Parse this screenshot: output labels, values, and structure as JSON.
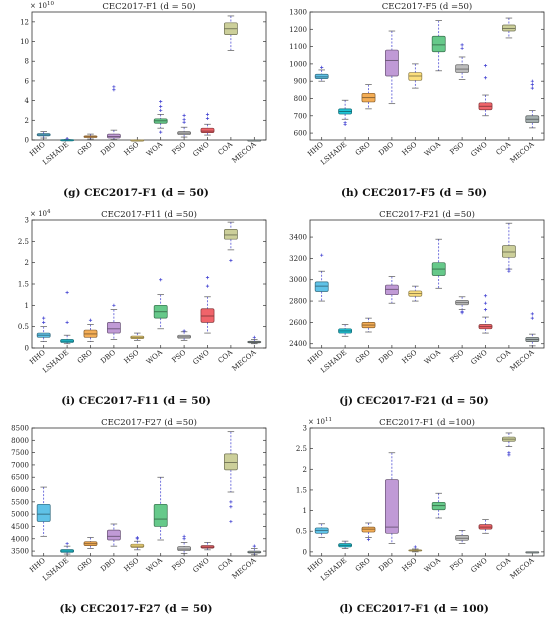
{
  "chart_data": [
    {
      "type": "box",
      "title": "CEC2017-F1 (d = 50)",
      "caption": "(g) CEC2017-F1 (d = 50)",
      "exponent": "× 10^10",
      "ylim": [
        0,
        13
      ],
      "yticks": [
        0,
        2,
        4,
        6,
        8,
        10,
        12
      ],
      "categories": [
        "HHO",
        "LSHADE",
        "GRO",
        "DBO",
        "HSO",
        "WOA",
        "PSO",
        "GWO",
        "COA",
        "MECOA"
      ],
      "boxes": [
        {
          "min": 0.2,
          "q1": 0.42,
          "median": 0.52,
          "q3": 0.65,
          "max": 0.85,
          "outliers": []
        },
        {
          "min": 0.0,
          "q1": 0.01,
          "median": 0.02,
          "q3": 0.03,
          "max": 0.05,
          "outliers": [
            0.12
          ]
        },
        {
          "min": 0.1,
          "q1": 0.25,
          "median": 0.33,
          "q3": 0.42,
          "max": 0.6,
          "outliers": []
        },
        {
          "min": 0.05,
          "q1": 0.2,
          "median": 0.35,
          "q3": 0.6,
          "max": 1.0,
          "outliers": [
            5.1,
            5.4
          ]
        },
        {
          "min": 0.0,
          "q1": 0.0,
          "median": 0.0,
          "q3": 0.01,
          "max": 0.02,
          "outliers": []
        },
        {
          "min": 1.2,
          "q1": 1.7,
          "median": 1.95,
          "q3": 2.15,
          "max": 2.6,
          "outliers": [
            3.0,
            3.4,
            3.9,
            0.8
          ]
        },
        {
          "min": 0.3,
          "q1": 0.55,
          "median": 0.7,
          "q3": 0.85,
          "max": 1.3,
          "outliers": [
            1.8,
            2.1,
            2.5
          ]
        },
        {
          "min": 0.5,
          "q1": 0.75,
          "median": 0.9,
          "q3": 1.2,
          "max": 1.6,
          "outliers": [
            2.2,
            2.6
          ]
        },
        {
          "min": 9.1,
          "q1": 10.7,
          "median": 11.3,
          "q3": 11.9,
          "max": 12.6,
          "outliers": []
        },
        {
          "min": 0.0,
          "q1": 0.0,
          "median": 0.0,
          "q3": 0.0,
          "max": 0.0,
          "outliers": []
        }
      ]
    },
    {
      "type": "box",
      "title": "CEC2017-F5 (d =50)",
      "caption": "(h) CEC2017-F5 (d = 50)",
      "exponent": "",
      "ylim": [
        560,
        1300
      ],
      "yticks": [
        600,
        700,
        800,
        900,
        1000,
        1100,
        1200,
        1300
      ],
      "categories": [
        "HHO",
        "LSHADE",
        "GRO",
        "DBO",
        "HSO",
        "WOA",
        "PSO",
        "GWO",
        "COA",
        "MECOA"
      ],
      "boxes": [
        {
          "min": 900,
          "q1": 915,
          "median": 925,
          "q3": 940,
          "max": 965,
          "outliers": [
            980
          ]
        },
        {
          "min": 680,
          "q1": 710,
          "median": 725,
          "q3": 740,
          "max": 790,
          "outliers": [
            660,
            650
          ]
        },
        {
          "min": 740,
          "q1": 780,
          "median": 805,
          "q3": 830,
          "max": 880,
          "outliers": []
        },
        {
          "min": 770,
          "q1": 930,
          "median": 1020,
          "q3": 1080,
          "max": 1190,
          "outliers": []
        },
        {
          "min": 860,
          "q1": 905,
          "median": 930,
          "q3": 950,
          "max": 1000,
          "outliers": []
        },
        {
          "min": 960,
          "q1": 1070,
          "median": 1110,
          "q3": 1160,
          "max": 1250,
          "outliers": []
        },
        {
          "min": 910,
          "q1": 950,
          "median": 970,
          "q3": 995,
          "max": 1040,
          "outliers": [
            1090,
            1110
          ]
        },
        {
          "min": 700,
          "q1": 735,
          "median": 755,
          "q3": 775,
          "max": 820,
          "outliers": [
            920,
            990
          ]
        },
        {
          "min": 1150,
          "q1": 1190,
          "median": 1205,
          "q3": 1225,
          "max": 1265,
          "outliers": []
        },
        {
          "min": 630,
          "q1": 660,
          "median": 680,
          "q3": 700,
          "max": 730,
          "outliers": [
            860,
            880,
            900
          ]
        }
      ]
    },
    {
      "type": "box",
      "title": "CEC2017-F11 (d =50)",
      "caption": "(i) CEC2017-F11 (d = 50)",
      "exponent": "× 10^4",
      "ylim": [
        0,
        3.0
      ],
      "yticks": [
        0,
        0.5,
        1,
        1.5,
        2,
        2.5,
        3
      ],
      "categories": [
        "HHO",
        "LSHADE",
        "GRO",
        "DBO",
        "HSO",
        "WOA",
        "PSO",
        "GWO",
        "COA",
        "MECOA"
      ],
      "boxes": [
        {
          "min": 0.15,
          "q1": 0.25,
          "median": 0.3,
          "q3": 0.35,
          "max": 0.5,
          "outliers": [
            0.6,
            0.7
          ]
        },
        {
          "min": 0.1,
          "q1": 0.13,
          "median": 0.16,
          "q3": 0.2,
          "max": 0.3,
          "outliers": [
            1.3,
            0.6
          ]
        },
        {
          "min": 0.15,
          "q1": 0.25,
          "median": 0.33,
          "q3": 0.42,
          "max": 0.55,
          "outliers": [
            0.65
          ]
        },
        {
          "min": 0.2,
          "q1": 0.35,
          "median": 0.45,
          "q3": 0.6,
          "max": 0.9,
          "outliers": [
            1.0
          ]
        },
        {
          "min": 0.18,
          "q1": 0.22,
          "median": 0.25,
          "q3": 0.28,
          "max": 0.35,
          "outliers": []
        },
        {
          "min": 0.45,
          "q1": 0.7,
          "median": 0.85,
          "q3": 1.0,
          "max": 1.25,
          "outliers": [
            1.6
          ]
        },
        {
          "min": 0.18,
          "q1": 0.23,
          "median": 0.26,
          "q3": 0.3,
          "max": 0.38,
          "outliers": [
            0.4
          ]
        },
        {
          "min": 0.35,
          "q1": 0.6,
          "median": 0.75,
          "q3": 0.92,
          "max": 1.2,
          "outliers": [
            1.45,
            1.65
          ]
        },
        {
          "min": 2.3,
          "q1": 2.55,
          "median": 2.65,
          "q3": 2.78,
          "max": 2.95,
          "outliers": [
            2.05
          ]
        },
        {
          "min": 0.1,
          "q1": 0.12,
          "median": 0.14,
          "q3": 0.16,
          "max": 0.2,
          "outliers": [
            0.25
          ]
        }
      ]
    },
    {
      "type": "box",
      "title": "CEC2017-F21 (d =50)",
      "caption": "(j) CEC2017-F21 (d = 50)",
      "exponent": "",
      "ylim": [
        2360,
        3560
      ],
      "yticks": [
        2400,
        2600,
        2800,
        3000,
        3200,
        3400
      ],
      "categories": [
        "HHO",
        "LSHADE",
        "GRO",
        "DBO",
        "HSO",
        "WOA",
        "PSO",
        "GWO",
        "COA",
        "MECOA"
      ],
      "boxes": [
        {
          "min": 2800,
          "q1": 2890,
          "median": 2940,
          "q3": 2980,
          "max": 3080,
          "outliers": [
            3230
          ]
        },
        {
          "min": 2470,
          "q1": 2500,
          "median": 2520,
          "q3": 2540,
          "max": 2580,
          "outliers": []
        },
        {
          "min": 2510,
          "q1": 2550,
          "median": 2575,
          "q3": 2600,
          "max": 2640,
          "outliers": []
        },
        {
          "min": 2780,
          "q1": 2860,
          "median": 2910,
          "q3": 2950,
          "max": 3030,
          "outliers": []
        },
        {
          "min": 2800,
          "q1": 2845,
          "median": 2870,
          "q3": 2895,
          "max": 2940,
          "outliers": []
        },
        {
          "min": 2920,
          "q1": 3040,
          "median": 3100,
          "q3": 3160,
          "max": 3380,
          "outliers": []
        },
        {
          "min": 2720,
          "q1": 2765,
          "median": 2785,
          "q3": 2805,
          "max": 2840,
          "outliers": [
            2700,
            2690
          ]
        },
        {
          "min": 2500,
          "q1": 2540,
          "median": 2560,
          "q3": 2580,
          "max": 2650,
          "outliers": [
            2720,
            2780,
            2850
          ]
        },
        {
          "min": 3100,
          "q1": 3210,
          "median": 3260,
          "q3": 3320,
          "max": 3530,
          "outliers": [
            3100,
            3080
          ]
        },
        {
          "min": 2380,
          "q1": 2420,
          "median": 2440,
          "q3": 2460,
          "max": 2490,
          "outliers": [
            2640,
            2680
          ]
        }
      ]
    },
    {
      "type": "box",
      "title": "CEC2017-F27 (d =50)",
      "caption": "(k) CEC2017-F27 (d = 50)",
      "exponent": "",
      "ylim": [
        3300,
        8500
      ],
      "yticks": [
        3500,
        4000,
        4500,
        5000,
        5500,
        6000,
        6500,
        7000,
        7500,
        8000,
        8500
      ],
      "categories": [
        "HHO",
        "LSHADE",
        "GRO",
        "DBO",
        "HSO",
        "WOA",
        "PSO",
        "GWO",
        "COA",
        "MECOA"
      ],
      "boxes": [
        {
          "min": 4100,
          "q1": 4700,
          "median": 5000,
          "q3": 5400,
          "max": 6100,
          "outliers": []
        },
        {
          "min": 3380,
          "q1": 3450,
          "median": 3500,
          "q3": 3560,
          "max": 3700,
          "outliers": [
            3800
          ]
        },
        {
          "min": 3600,
          "q1": 3720,
          "median": 3800,
          "q3": 3880,
          "max": 4050,
          "outliers": []
        },
        {
          "min": 3700,
          "q1": 3950,
          "median": 4100,
          "q3": 4350,
          "max": 4600,
          "outliers": []
        },
        {
          "min": 3550,
          "q1": 3650,
          "median": 3700,
          "q3": 3780,
          "max": 3900,
          "outliers": [
            4000,
            4050
          ]
        },
        {
          "min": 3950,
          "q1": 4500,
          "median": 4800,
          "q3": 5400,
          "max": 6500,
          "outliers": []
        },
        {
          "min": 3400,
          "q1": 3520,
          "median": 3580,
          "q3": 3680,
          "max": 3850,
          "outliers": [
            4000,
            4100
          ]
        },
        {
          "min": 3550,
          "q1": 3620,
          "median": 3660,
          "q3": 3720,
          "max": 3850,
          "outliers": []
        },
        {
          "min": 5900,
          "q1": 6800,
          "median": 7100,
          "q3": 7450,
          "max": 8350,
          "outliers": [
            5500,
            5300,
            4700
          ]
        },
        {
          "min": 3350,
          "q1": 3420,
          "median": 3450,
          "q3": 3500,
          "max": 3600,
          "outliers": [
            3700
          ]
        }
      ]
    },
    {
      "type": "box",
      "title": "CEC2017-F1 (d =100)",
      "caption": "(l) CEC2017-F1 (d = 100)",
      "exponent": "× 10^11",
      "ylim": [
        -0.1,
        3.0
      ],
      "yticks": [
        0,
        0.5,
        1,
        1.5,
        2,
        2.5,
        3
      ],
      "categories": [
        "HHO",
        "LSHADE",
        "GRO",
        "DBO",
        "HSO",
        "WOA",
        "PSO",
        "GWO",
        "COA",
        "MECOA"
      ],
      "boxes": [
        {
          "min": 0.35,
          "q1": 0.45,
          "median": 0.52,
          "q3": 0.58,
          "max": 0.68,
          "outliers": []
        },
        {
          "min": 0.08,
          "q1": 0.12,
          "median": 0.16,
          "q3": 0.2,
          "max": 0.26,
          "outliers": []
        },
        {
          "min": 0.35,
          "q1": 0.48,
          "median": 0.55,
          "q3": 0.6,
          "max": 0.7,
          "outliers": [
            0.3
          ]
        },
        {
          "min": 0.2,
          "q1": 0.45,
          "median": 0.6,
          "q3": 1.75,
          "max": 2.4,
          "outliers": []
        },
        {
          "min": 0.0,
          "q1": 0.02,
          "median": 0.03,
          "q3": 0.05,
          "max": 0.07,
          "outliers": [
            0.12
          ]
        },
        {
          "min": 0.82,
          "q1": 1.02,
          "median": 1.12,
          "q3": 1.2,
          "max": 1.42,
          "outliers": []
        },
        {
          "min": 0.2,
          "q1": 0.28,
          "median": 0.33,
          "q3": 0.4,
          "max": 0.52,
          "outliers": []
        },
        {
          "min": 0.45,
          "q1": 0.55,
          "median": 0.6,
          "q3": 0.66,
          "max": 0.78,
          "outliers": []
        },
        {
          "min": 2.55,
          "q1": 2.68,
          "median": 2.73,
          "q3": 2.78,
          "max": 2.88,
          "outliers": [
            2.4,
            2.35
          ]
        },
        {
          "min": 0.0,
          "q1": 0.0,
          "median": 0.0,
          "q3": 0.0,
          "max": 0.0,
          "outliers": []
        }
      ]
    }
  ],
  "colors": [
    "#5fc2e7",
    "#21c4d6",
    "#f4ad55",
    "#c09ad6",
    "#fbde7d",
    "#66c98a",
    "#bdbdbd",
    "#f0646a",
    "#cccf9a",
    "#a6b0b0"
  ]
}
